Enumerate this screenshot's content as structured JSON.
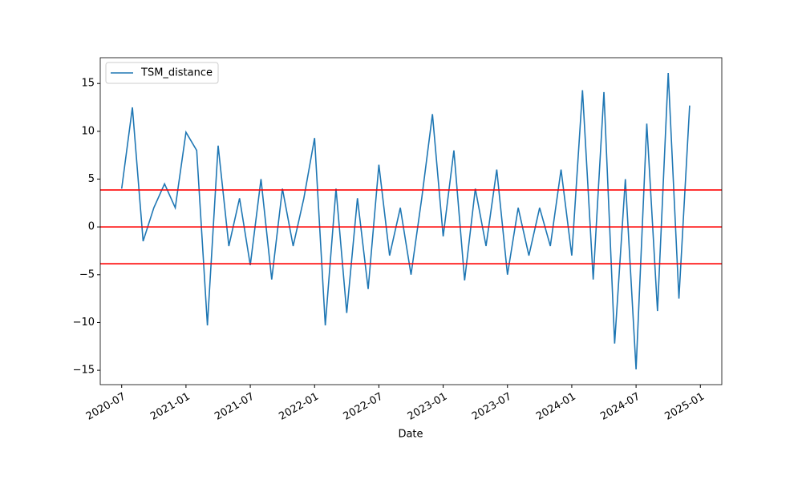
{
  "chart_data": {
    "type": "line",
    "xlabel": "Date",
    "x": [
      "2020-07",
      "2020-08",
      "2020-09",
      "2020-10",
      "2020-11",
      "2020-12",
      "2021-01",
      "2021-02",
      "2021-03",
      "2021-04",
      "2021-05",
      "2021-06",
      "2021-07",
      "2021-08",
      "2021-09",
      "2021-10",
      "2021-11",
      "2021-12",
      "2022-01",
      "2022-02",
      "2022-03",
      "2022-04",
      "2022-05",
      "2022-06",
      "2022-07",
      "2022-08",
      "2022-09",
      "2022-10",
      "2022-11",
      "2022-12",
      "2023-01",
      "2023-02",
      "2023-03",
      "2023-04",
      "2023-05",
      "2023-06",
      "2023-07",
      "2023-08",
      "2023-09",
      "2023-10",
      "2023-11",
      "2023-12",
      "2024-01",
      "2024-02",
      "2024-03",
      "2024-04",
      "2024-05",
      "2024-06",
      "2024-07",
      "2024-08",
      "2024-09",
      "2024-10",
      "2024-11",
      "2024-12"
    ],
    "series": [
      {
        "name": "TSM_distance",
        "color": "#1f77b4",
        "values": [
          4,
          12.5,
          -1.5,
          2,
          4.5,
          2,
          9.9,
          8,
          -10.3,
          8.5,
          -2,
          3,
          -4,
          5,
          -5.5,
          4,
          -2,
          3,
          9.3,
          -10.3,
          4,
          -9,
          3,
          -6.5,
          6.5,
          -3,
          2,
          -5,
          3,
          11.8,
          -1,
          8,
          -5.6,
          4,
          -2,
          6,
          -5,
          2,
          -3,
          2,
          -2,
          6,
          -3,
          14.3,
          -5.5,
          14.1,
          -12.2,
          5,
          -14.9,
          10.8,
          -8.8,
          16.1,
          -7.5,
          12.7
        ]
      }
    ],
    "hlines": [
      3.86,
      0,
      -3.86
    ],
    "hline_color": "#ff0000",
    "xlim": [
      "2020-05",
      "2025-03"
    ],
    "xticks": [
      "2020-07",
      "2021-01",
      "2021-07",
      "2022-01",
      "2022-07",
      "2023-01",
      "2023-07",
      "2024-01",
      "2024-07",
      "2025-01"
    ],
    "ylim": [
      -16.5,
      17.7
    ],
    "yticks": [
      {
        "value": -15,
        "label": "−15"
      },
      {
        "value": -10,
        "label": "−10"
      },
      {
        "value": -5,
        "label": "−5"
      },
      0,
      5,
      10,
      15
    ],
    "legend": "upper left"
  }
}
